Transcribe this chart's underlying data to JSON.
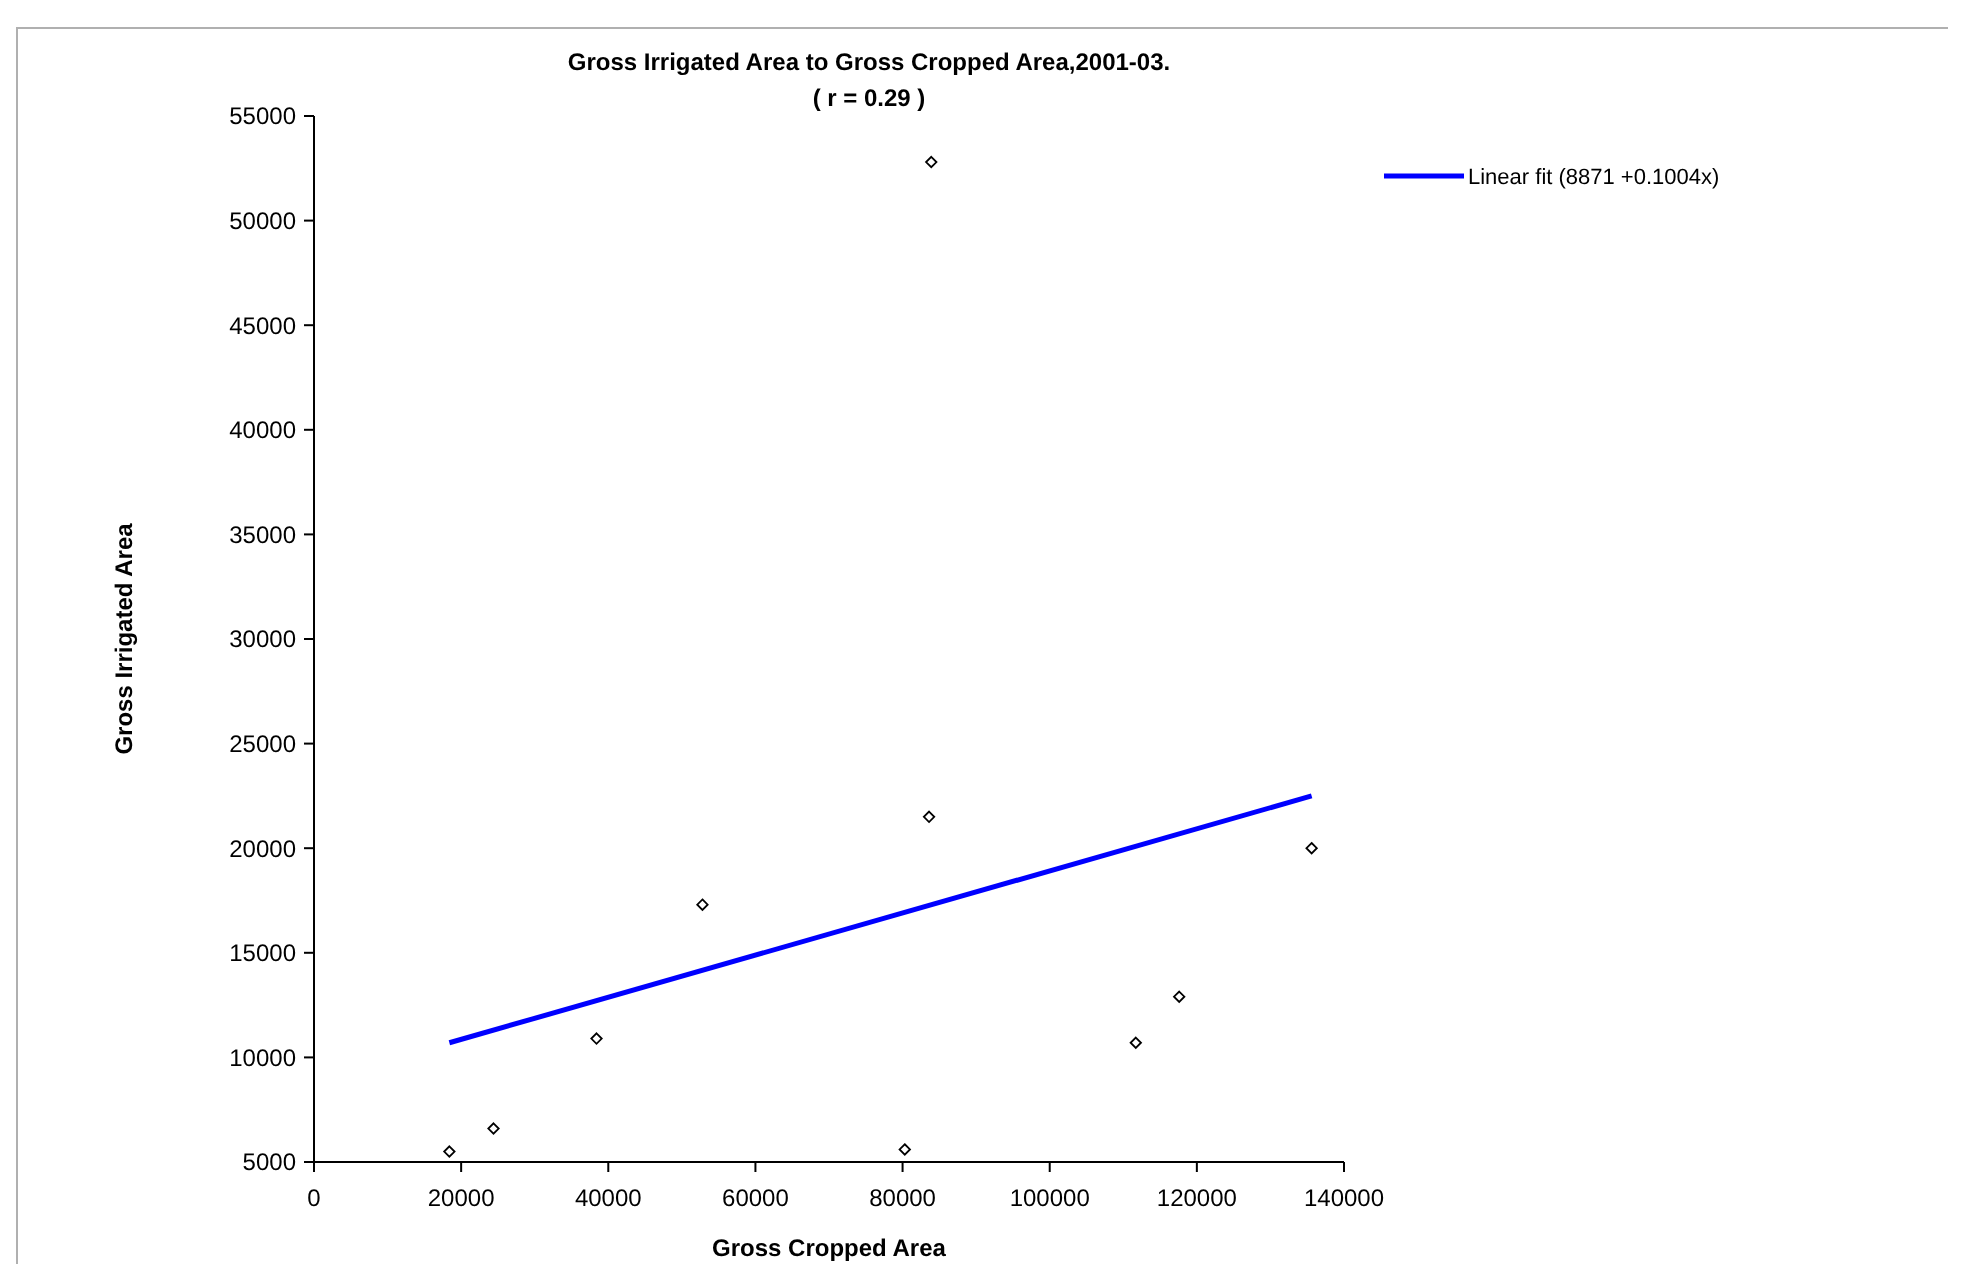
{
  "chart_data": {
    "type": "scatter",
    "title": "Gross Irrigated Area to Gross Cropped Area,2001-03.",
    "subtitle": "( r = 0.29 )",
    "xlabel": "Gross Cropped Area",
    "ylabel": "Gross Irrigated Area",
    "xlim": [
      0,
      140000
    ],
    "xticks": [
      0,
      20000,
      40000,
      60000,
      80000,
      100000,
      120000,
      140000
    ],
    "ylim": [
      5000,
      55000
    ],
    "yticks": [
      5000,
      10000,
      15000,
      20000,
      25000,
      30000,
      35000,
      40000,
      45000,
      50000,
      55000
    ],
    "grid": false,
    "legend": "top right",
    "series": [
      {
        "marker": "diamond",
        "color": "#000000",
        "x": [
          18400,
          24400,
          38400,
          52800,
          80300,
          83600,
          83900,
          111700,
          117600,
          135600
        ],
        "values": [
          5500,
          6600,
          10900,
          17300,
          5600,
          21500,
          52800,
          10700,
          12900,
          20000
        ]
      },
      {
        "type": "line",
        "name": "Linear fit (8871  +0.1004x)",
        "color": "#0000ff",
        "line_style": "solid",
        "x": [
          18400,
          135600
        ],
        "values": [
          10700,
          22500
        ]
      }
    ]
  }
}
